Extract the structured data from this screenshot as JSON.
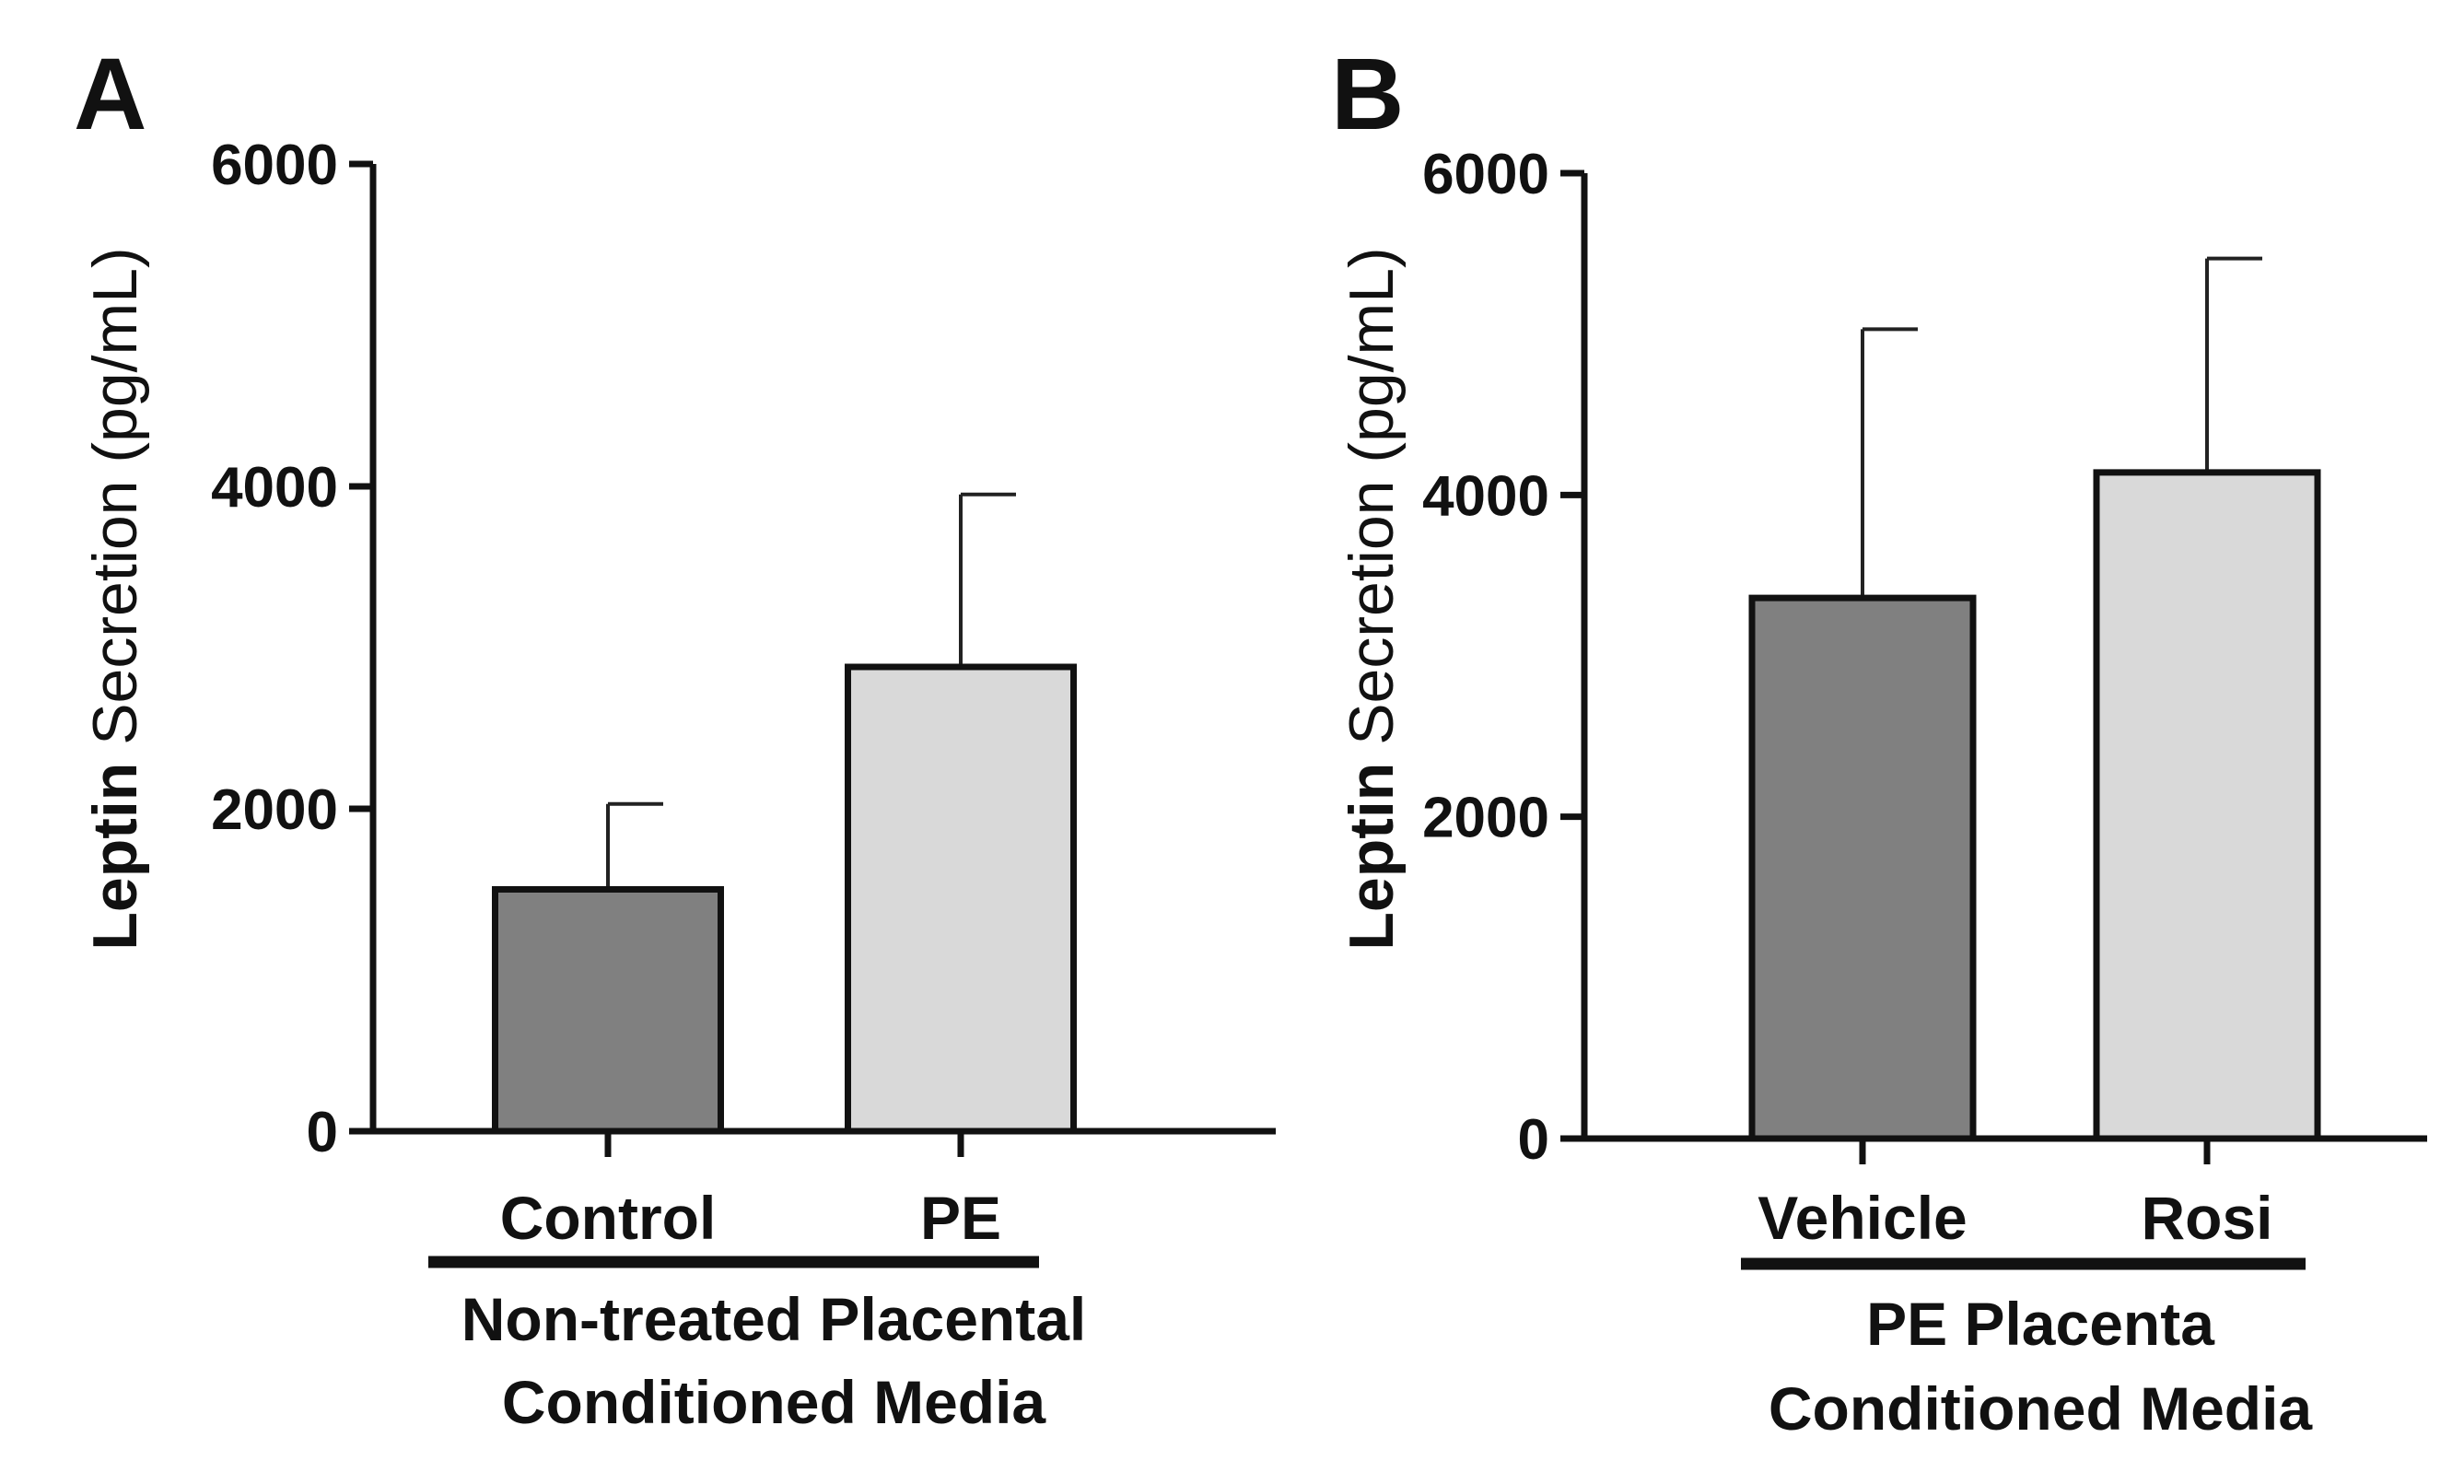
{
  "chart_data": [
    {
      "type": "bar",
      "panel_label": "A",
      "categories": [
        "Control",
        "PE"
      ],
      "values": [
        1500,
        2880
      ],
      "errors": [
        530,
        1070
      ],
      "bar_colors": [
        "#808080",
        "#d9d9d9"
      ],
      "ylabel_bold": "Leptin",
      "ylabel_rest": " Secretion (pg/mL)",
      "ylim": [
        0,
        6000
      ],
      "yticks": [
        "0",
        "2000",
        "4000",
        "6000"
      ],
      "group_label": [
        "Non-treated Placental",
        "Conditioned Media"
      ]
    },
    {
      "type": "bar",
      "panel_label": "B",
      "categories": [
        "Vehicle",
        "Rosi"
      ],
      "values": [
        3360,
        4140
      ],
      "errors": [
        1670,
        1330
      ],
      "bar_colors": [
        "#808080",
        "#d9d9d9"
      ],
      "ylabel_bold": "Leptin",
      "ylabel_rest": " Secretion (pg/mL)",
      "ylim": [
        0,
        6000
      ],
      "yticks": [
        "0",
        "2000",
        "4000",
        "6000"
      ],
      "group_label": [
        "PE Placenta",
        "Conditioned Media"
      ]
    }
  ]
}
